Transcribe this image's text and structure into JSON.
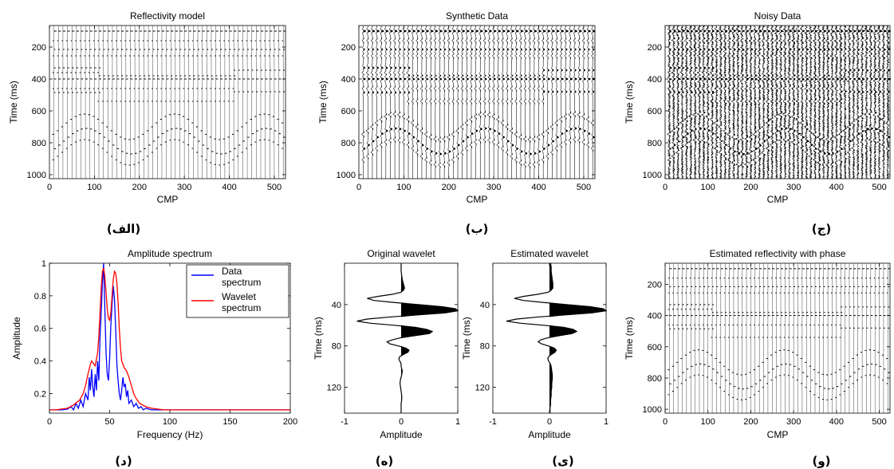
{
  "chart_data": [
    {
      "id": "reflectivity",
      "type": "seismic_section",
      "title": "Reflectivity model",
      "xlabel": "CMP",
      "ylabel": "Time (ms)",
      "xlim": [
        0,
        525
      ],
      "ylim": [
        1025,
        65
      ],
      "xticks": [
        0,
        100,
        200,
        300,
        400,
        500
      ],
      "yticks": [
        200,
        400,
        600,
        800,
        1000
      ],
      "caption": "(الف)",
      "noise": false,
      "wiggle": "spikes",
      "trace_spacing_cmp": 10
    },
    {
      "id": "synthetic",
      "type": "seismic_section",
      "title": "Synthetic Data",
      "xlabel": "CMP",
      "ylabel": "Time (ms)",
      "xlim": [
        0,
        525
      ],
      "ylim": [
        1025,
        65
      ],
      "xticks": [
        0,
        100,
        200,
        300,
        400,
        500
      ],
      "yticks": [
        200,
        400,
        600,
        800,
        1000
      ],
      "caption": "(ب)",
      "noise": false,
      "wiggle": "wavelet",
      "trace_spacing_cmp": 10
    },
    {
      "id": "noisy",
      "type": "seismic_section",
      "title": "Noisy Data",
      "xlabel": "CMP",
      "ylabel": "Time (ms)",
      "xlim": [
        0,
        525
      ],
      "ylim": [
        1025,
        65
      ],
      "xticks": [
        0,
        100,
        200,
        300,
        400,
        500
      ],
      "yticks": [
        200,
        400,
        600,
        800,
        1000
      ],
      "caption": "(ج)",
      "noise": true,
      "wiggle": "wavelet",
      "trace_spacing_cmp": 10
    },
    {
      "id": "spectrum",
      "type": "line",
      "title": "Amplitude spectrum",
      "xlabel": "Frequency (Hz)",
      "ylabel": "Amplitude",
      "xlim": [
        0,
        200
      ],
      "ylim": [
        0.08,
        1
      ],
      "xticks": [
        0,
        50,
        100,
        150,
        200
      ],
      "yticks": [
        0.2,
        0.4,
        0.6,
        0.8,
        1
      ],
      "legend": "top-right",
      "caption": "(د)",
      "series": [
        {
          "name": "Data\nspectrum",
          "color": "#0000ff",
          "x": [
            0,
            5,
            10,
            15,
            18,
            20,
            22,
            24,
            26,
            28,
            30,
            32,
            33,
            34,
            35,
            36,
            37,
            38,
            39,
            40,
            41,
            42,
            43,
            44,
            45,
            46,
            47,
            48,
            49,
            50,
            51,
            52,
            53,
            54,
            55,
            56,
            57,
            58,
            59,
            60,
            61,
            62,
            63,
            64,
            65,
            66,
            68,
            70,
            72,
            74,
            76,
            78,
            80,
            85,
            90,
            95,
            100,
            110,
            120,
            140,
            160,
            180,
            200
          ],
          "y": [
            0.1,
            0.1,
            0.1,
            0.105,
            0.12,
            0.1,
            0.14,
            0.11,
            0.16,
            0.12,
            0.2,
            0.16,
            0.3,
            0.22,
            0.35,
            0.24,
            0.18,
            0.32,
            0.22,
            0.4,
            0.28,
            0.55,
            0.7,
            0.88,
            1.0,
            0.72,
            0.45,
            0.32,
            0.28,
            0.42,
            0.62,
            0.75,
            0.86,
            0.78,
            0.6,
            0.38,
            0.28,
            0.2,
            0.16,
            0.22,
            0.3,
            0.24,
            0.26,
            0.18,
            0.22,
            0.14,
            0.16,
            0.12,
            0.14,
            0.11,
            0.12,
            0.1,
            0.11,
            0.1,
            0.1,
            0.1,
            0.1,
            0.1,
            0.1,
            0.1,
            0.1,
            0.1,
            0.1
          ]
        },
        {
          "name": "Wavelet\nspectrum",
          "color": "#ff0000",
          "x": [
            0,
            5,
            10,
            15,
            20,
            25,
            28,
            30,
            32,
            34,
            35,
            36,
            38,
            40,
            41,
            42,
            43,
            44,
            45,
            46,
            47,
            48,
            49,
            50,
            51,
            52,
            53,
            54,
            55,
            56,
            57,
            58,
            59,
            60,
            62,
            64,
            66,
            68,
            70,
            72,
            75,
            80,
            85,
            90,
            95,
            100,
            110,
            120,
            140,
            160,
            180,
            200
          ],
          "y": [
            0.1,
            0.1,
            0.105,
            0.11,
            0.13,
            0.16,
            0.2,
            0.25,
            0.32,
            0.38,
            0.4,
            0.39,
            0.37,
            0.45,
            0.55,
            0.7,
            0.85,
            0.95,
            0.97,
            0.92,
            0.82,
            0.72,
            0.66,
            0.65,
            0.7,
            0.8,
            0.9,
            0.95,
            0.94,
            0.88,
            0.76,
            0.6,
            0.48,
            0.4,
            0.36,
            0.34,
            0.3,
            0.25,
            0.2,
            0.17,
            0.14,
            0.12,
            0.11,
            0.105,
            0.1,
            0.1,
            0.1,
            0.1,
            0.1,
            0.1,
            0.1,
            0.1
          ]
        }
      ]
    },
    {
      "id": "original_wavelet",
      "type": "wavelet",
      "title": "Original wavelet",
      "xlabel": "Amplitude",
      "ylabel": "Time (ms)",
      "xlim": [
        -1,
        1
      ],
      "ylim": [
        145,
        0
      ],
      "xticks": [
        -1,
        0,
        1
      ],
      "yticks": [
        40,
        80,
        120
      ],
      "caption": "(ه)",
      "t": [
        0,
        4,
        8,
        12,
        16,
        20,
        24,
        26,
        28,
        30,
        32,
        34,
        36,
        38,
        40,
        42,
        44,
        46,
        48,
        50,
        52,
        54,
        56,
        58,
        60,
        62,
        64,
        66,
        68,
        70,
        72,
        74,
        76,
        78,
        80,
        82,
        84,
        86,
        88,
        90,
        92,
        94,
        96,
        98,
        100,
        104,
        108,
        112,
        116,
        120,
        124,
        128,
        132,
        136,
        140,
        145
      ],
      "amp": [
        0,
        0,
        0,
        0.01,
        0.02,
        0.04,
        0.06,
        0.04,
        0.0,
        -0.15,
        -0.4,
        -0.6,
        -0.48,
        -0.12,
        0.3,
        0.72,
        0.96,
        1.0,
        0.78,
        0.3,
        -0.2,
        -0.6,
        -0.78,
        -0.55,
        -0.12,
        0.25,
        0.45,
        0.55,
        0.5,
        0.25,
        0.0,
        -0.15,
        -0.25,
        -0.2,
        -0.05,
        0.08,
        0.14,
        0.12,
        0.05,
        -0.02,
        -0.04,
        -0.03,
        -0.01,
        0.0,
        0.0,
        0.02,
        0.01,
        -0.01,
        -0.02,
        -0.01,
        0.0,
        0.01,
        0.01,
        0.0,
        0.0,
        0.0
      ]
    },
    {
      "id": "estimated_wavelet",
      "type": "wavelet",
      "title": "Estimated wavelet",
      "xlabel": "Amplitude",
      "ylabel": "Time (ms)",
      "xlim": [
        -1,
        1
      ],
      "ylim": [
        145,
        0
      ],
      "xticks": [
        -1,
        0,
        1
      ],
      "yticks": [
        40,
        80,
        120
      ],
      "caption": "(ی)",
      "t": [
        0,
        4,
        8,
        12,
        16,
        20,
        24,
        26,
        28,
        30,
        32,
        34,
        36,
        38,
        40,
        42,
        44,
        46,
        48,
        50,
        52,
        54,
        56,
        58,
        60,
        62,
        64,
        66,
        68,
        70,
        72,
        74,
        76,
        78,
        80,
        82,
        84,
        86,
        88,
        90,
        92,
        94,
        96,
        98,
        100,
        104,
        108,
        112,
        116,
        120,
        124,
        128,
        132,
        136,
        140,
        145
      ],
      "amp": [
        0.02,
        0.03,
        0.03,
        0.04,
        0.05,
        0.06,
        0.06,
        0.03,
        -0.02,
        -0.2,
        -0.45,
        -0.62,
        -0.46,
        -0.1,
        0.3,
        0.72,
        0.95,
        1.0,
        0.75,
        0.28,
        -0.2,
        -0.58,
        -0.76,
        -0.52,
        -0.1,
        0.25,
        0.42,
        0.48,
        0.4,
        0.18,
        -0.02,
        -0.15,
        -0.2,
        -0.14,
        -0.02,
        0.08,
        0.12,
        0.1,
        0.04,
        -0.01,
        -0.03,
        -0.02,
        0.0,
        0.02,
        0.03,
        0.04,
        0.05,
        0.05,
        0.04,
        0.04,
        0.03,
        0.03,
        0.02,
        0.02,
        0.01,
        0.01
      ]
    },
    {
      "id": "estimated_reflectivity",
      "type": "seismic_section",
      "title": "Estimated reflectivity with phase",
      "xlabel": "CMP",
      "ylabel": "Time (ms)",
      "xlim": [
        0,
        525
      ],
      "ylim": [
        1025,
        65
      ],
      "xticks": [
        0,
        100,
        200,
        300,
        400,
        500
      ],
      "yticks": [
        200,
        400,
        600,
        800,
        1000
      ],
      "caption": "(و)",
      "noise": false,
      "wiggle": "spikes",
      "trace_spacing_cmp": 10
    }
  ],
  "reflectors": {
    "flat": [
      {
        "t0": 100,
        "amp": 1.0,
        "x_from": 0,
        "x_to": 525
      },
      {
        "t0": 160,
        "amp": -0.5,
        "x_from": 0,
        "x_to": 525
      },
      {
        "t0": 215,
        "amp": 0.6,
        "x_from": 0,
        "x_to": 525
      },
      {
        "t0": 255,
        "amp": -0.5,
        "x_from": 0,
        "x_to": 525
      },
      {
        "t0": 330,
        "amp": 0.7,
        "x_from": 0,
        "x_to": 110
      },
      {
        "t0": 360,
        "amp": -0.6,
        "x_from": 0,
        "x_to": 110
      },
      {
        "t0": 400,
        "amp": 0.9,
        "x_from": 0,
        "x_to": 525
      },
      {
        "t0": 380,
        "amp": 0.6,
        "x_from": 110,
        "x_to": 410
      },
      {
        "t0": 460,
        "amp": -0.5,
        "x_from": 0,
        "x_to": 410
      },
      {
        "t0": 485,
        "amp": 0.6,
        "x_from": 0,
        "x_to": 110
      },
      {
        "t0": 540,
        "amp": -0.5,
        "x_from": 110,
        "x_to": 410
      },
      {
        "t0": 345,
        "amp": 0.6,
        "x_from": 410,
        "x_to": 525
      },
      {
        "t0": 480,
        "amp": 0.6,
        "x_from": 410,
        "x_to": 525
      }
    ],
    "curved": [
      {
        "t0": 700,
        "amp": -0.7,
        "dip": 80
      },
      {
        "t0": 790,
        "amp": 0.8,
        "dip": 80
      },
      {
        "t0": 860,
        "amp": -0.6,
        "dip": 80
      }
    ]
  }
}
